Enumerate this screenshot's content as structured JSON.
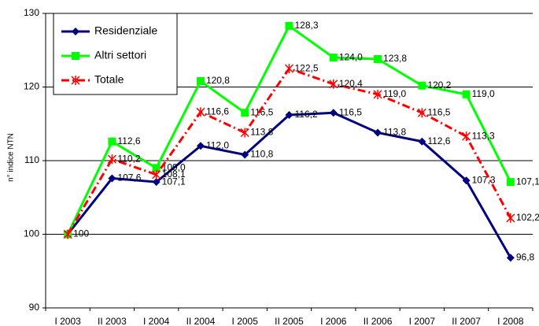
{
  "chart_data": {
    "type": "line",
    "y_label": "n° indice NTN",
    "categories": [
      "I 2003",
      "II 2003",
      "I 2004",
      "II 2004",
      "I 2005",
      "II 2005",
      "I 2006",
      "II 2006",
      "I 2007",
      "II 2007",
      "I 2008"
    ],
    "series": [
      {
        "name": "Residenziale",
        "color": "#000080",
        "marker": "diamond",
        "dash": "solid",
        "values": [
          100,
          107.6,
          107.1,
          112.0,
          110.8,
          116.2,
          116.5,
          113.8,
          112.6,
          107.3,
          96.8
        ],
        "value_labels": [
          "100",
          "107,6",
          "107,1",
          "112,0",
          "110,8",
          "116,2",
          "116,5",
          "113,8",
          "112,6",
          "107,3",
          "96,8"
        ]
      },
      {
        "name": "Altri settori",
        "color": "#00ff00",
        "marker": "square",
        "dash": "solid",
        "values": [
          100,
          112.6,
          109.0,
          120.8,
          116.5,
          128.3,
          124.0,
          123.8,
          120.2,
          119.0,
          107.1
        ],
        "value_labels": [
          null,
          "112,6",
          "109,0",
          "120,8",
          "116,5",
          "128,3",
          "124,0",
          "123,8",
          "120,2",
          "119,0",
          "107,1"
        ]
      },
      {
        "name": "Totale",
        "color": "#ff0000",
        "marker": "star",
        "dash": "dashdot",
        "values": [
          100,
          110.2,
          108.1,
          116.6,
          113.8,
          122.5,
          120.4,
          119.0,
          116.5,
          113.3,
          102.2
        ],
        "value_labels": [
          null,
          "110,2",
          "108,1",
          "116,6",
          "113,8",
          "122,5",
          "120,4",
          "119,0",
          "116,5",
          "113,3",
          "102,2"
        ]
      }
    ],
    "ylim": [
      90,
      130
    ],
    "yticks": [
      90,
      100,
      110,
      120,
      130
    ],
    "grid": true,
    "legend": "upper left"
  }
}
